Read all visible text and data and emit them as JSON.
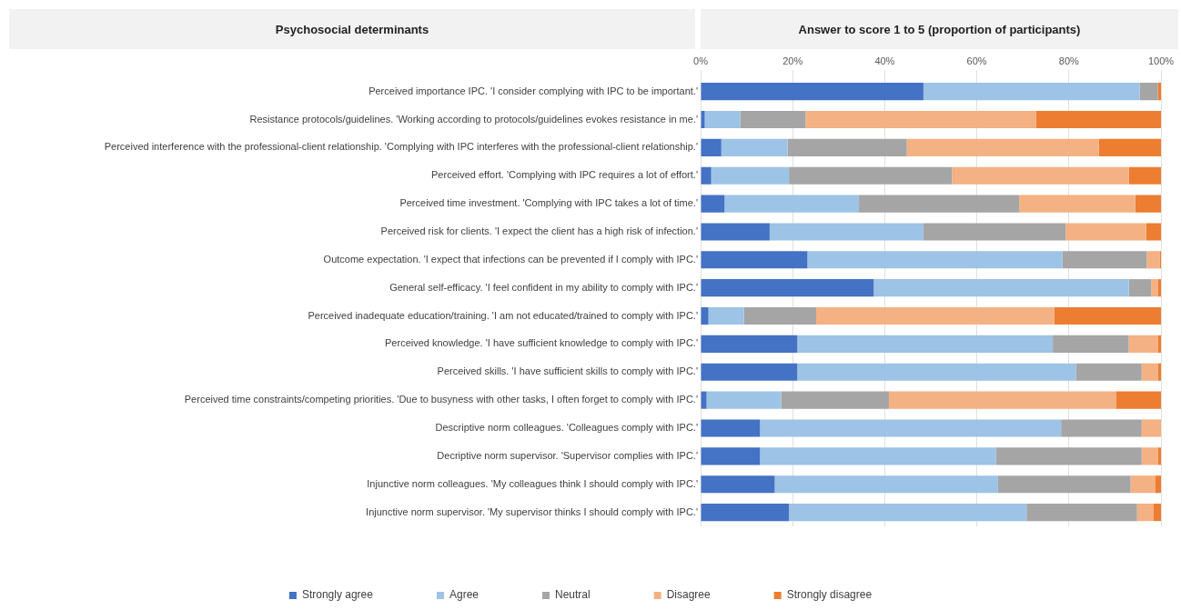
{
  "chart_data": {
    "type": "bar",
    "orientation": "horizontal",
    "stacked": true,
    "ylabel": "Psychosocial determinants",
    "xlabel": "Answer to score 1 to 5 (proportion of participants)",
    "categories": [
      "Perceived importance IPC. 'I consider complying with IPC to be important.'",
      "Resistance protocols/guidelines. 'Working according to protocols/guidelines evokes resistance in me.'",
      "Perceived interference with the professional-client relationship. 'Complying with IPC interferes with the professional-client relationship.'",
      "Perceived effort. 'Complying with IPC requires a lot of effort.'",
      "Perceived time investment. 'Complying with IPC takes a lot of time.'",
      "Perceived risk for clients. 'I expect the client has a high risk of infection.'",
      "Outcome expectation. 'I expect that infections can be prevented if I comply with IPC.'",
      "General self-efficacy. 'I feel confident in my ability to comply with IPC.'",
      "Perceived inadequate education/training. 'I am not educated/trained to comply with IPC.'",
      "Perceived knowledge. 'I have sufficient knowledge to comply with IPC.'",
      "Perceived skills. 'I have sufficient skills to comply with IPC.'",
      "Perceived time constraints/competing priorities. 'Due to busyness with other tasks, I often forget to comply with IPC.'",
      "Descriptive norm colleagues. 'Colleagues comply with IPC.'",
      "Decriptive norm supervisor. 'Supervisor complies with IPC.'",
      "Injunctive norm colleagues. 'My colleagues think I should comply with IPC.'",
      "Injunctive norm supervisor. 'My supervisor thinks I should comply with IPC.'"
    ],
    "series": [
      {
        "name": "Strongly agree",
        "color": "#4472c4",
        "values": [
          48.4,
          0.9,
          4.5,
          2.3,
          5.2,
          15.0,
          23.2,
          37.6,
          1.7,
          21.0,
          21.0,
          1.3,
          12.9,
          12.9,
          16.1,
          19.2
        ]
      },
      {
        "name": "Agree",
        "color": "#9dc3e6",
        "values": [
          47.0,
          7.7,
          14.4,
          16.9,
          29.2,
          33.4,
          55.4,
          55.4,
          7.7,
          55.5,
          60.5,
          16.2,
          65.4,
          51.3,
          48.5,
          51.6
        ]
      },
      {
        "name": "Neutral",
        "color": "#a5a5a5",
        "values": [
          3.9,
          14.2,
          25.9,
          35.4,
          34.8,
          30.9,
          18.3,
          4.9,
          15.7,
          16.5,
          14.3,
          23.4,
          17.5,
          31.6,
          28.8,
          24.0
        ]
      },
      {
        "name": "Disagree",
        "color": "#f4b183",
        "values": [
          0,
          50.1,
          41.7,
          38.4,
          25.2,
          17.5,
          2.8,
          1.4,
          51.7,
          6.4,
          3.6,
          49.3,
          4.2,
          3.6,
          5.3,
          3.5
        ]
      },
      {
        "name": "Strongly disagree",
        "color": "#ed7d31",
        "values": [
          0.7,
          27.1,
          13.5,
          7.0,
          5.6,
          3.2,
          0.3,
          0.7,
          23.2,
          0.6,
          0.6,
          9.8,
          0,
          0.6,
          1.3,
          1.7
        ]
      }
    ],
    "xlim": [
      0,
      100
    ],
    "xticks": [
      {
        "value": 0,
        "label": "0%"
      },
      {
        "value": 20,
        "label": "20%"
      },
      {
        "value": 40,
        "label": "40%"
      },
      {
        "value": 60,
        "label": "60%"
      },
      {
        "value": 80,
        "label": "80%"
      },
      {
        "value": 100,
        "label": "100%"
      }
    ],
    "grid": "x",
    "legend": "bottom"
  }
}
